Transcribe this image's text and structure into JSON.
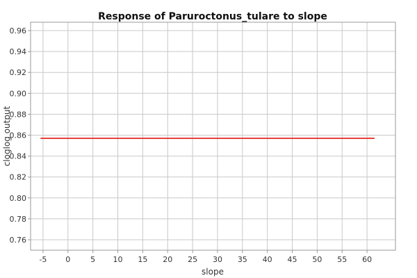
{
  "chart_data": {
    "type": "line",
    "title": "Response of Paruroctonus_tulare to slope",
    "xlabel": "slope",
    "ylabel": "cloglog output",
    "xlim": [
      -7.5,
      65.7
    ],
    "ylim": [
      0.75,
      0.968
    ],
    "x_ticks": [
      -5,
      0,
      5,
      10,
      15,
      20,
      25,
      30,
      35,
      40,
      45,
      50,
      55,
      60
    ],
    "y_ticks": [
      0.76,
      0.78,
      0.8,
      0.82,
      0.84,
      0.86,
      0.88,
      0.9,
      0.92,
      0.94,
      0.96
    ],
    "grid": true,
    "series": [
      {
        "color": "#e8403a",
        "x": [
          -5.5,
          61.5
        ],
        "y": [
          0.857,
          0.857
        ]
      }
    ]
  }
}
